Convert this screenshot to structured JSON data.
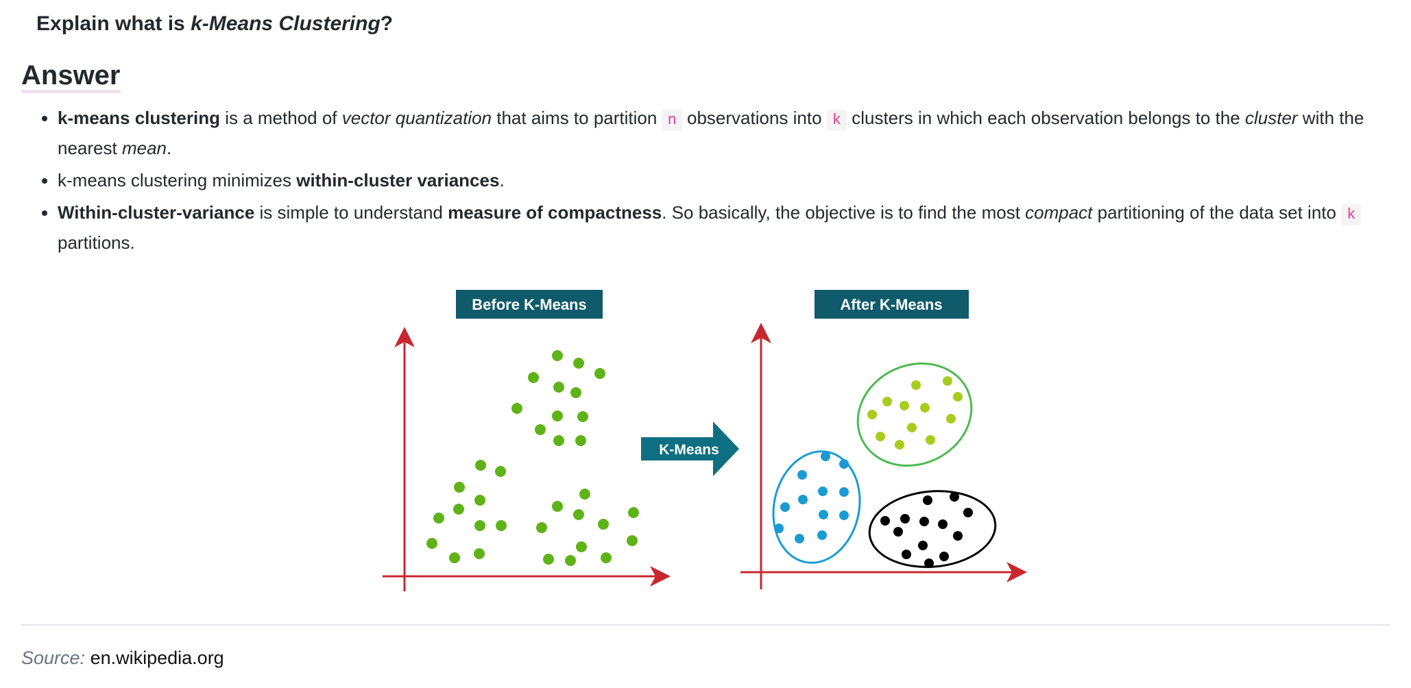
{
  "question": {
    "prefix": "Explain what is ",
    "emphasis": "k-Means Clustering",
    "suffix": "?"
  },
  "answer_heading": "Answer",
  "bullets": [
    {
      "p1_bold": "k-means clustering",
      "p2": " is a method of ",
      "p3_italic": "vector quantization",
      "p4": " that aims to partition ",
      "p5_code": "n",
      "p6": " observations into ",
      "p7_code": "k",
      "p8": " clusters in which each observation belongs to the ",
      "p9_italic": "cluster",
      "p10": " with the nearest ",
      "p11_italic": "mean",
      "p12": "."
    },
    {
      "p1": "k-means clustering minimizes ",
      "p2_bold": "within-cluster variances",
      "p3": "."
    },
    {
      "p1_bold": "Within-cluster-variance",
      "p2": " is simple to understand ",
      "p3_bold": "measure of compactness",
      "p4": ". So basically, the objective is to find the most ",
      "p5_italic": "compact",
      "p6": " partitioning of the data set into ",
      "p7_code": "k",
      "p8": " partitions."
    }
  ],
  "figure": {
    "before_label": "Before K-Means",
    "after_label": "After K-Means",
    "arrow_label": "K-Means",
    "colors": {
      "label_bg": "#0f5a6b",
      "arrow_bg": "#0f6f82",
      "axis": "#c8272f",
      "dot_green": "#5fb318",
      "dot_yellowgreen": "#a8cc1c",
      "dot_blue": "#1a9bd3",
      "dot_black": "#000000",
      "ellipse_green": "#4dba50",
      "ellipse_blue": "#1a9bd3",
      "ellipse_black": "#000000"
    }
  },
  "source": {
    "label": "Source:",
    "value": "en.wikipedia.org"
  }
}
